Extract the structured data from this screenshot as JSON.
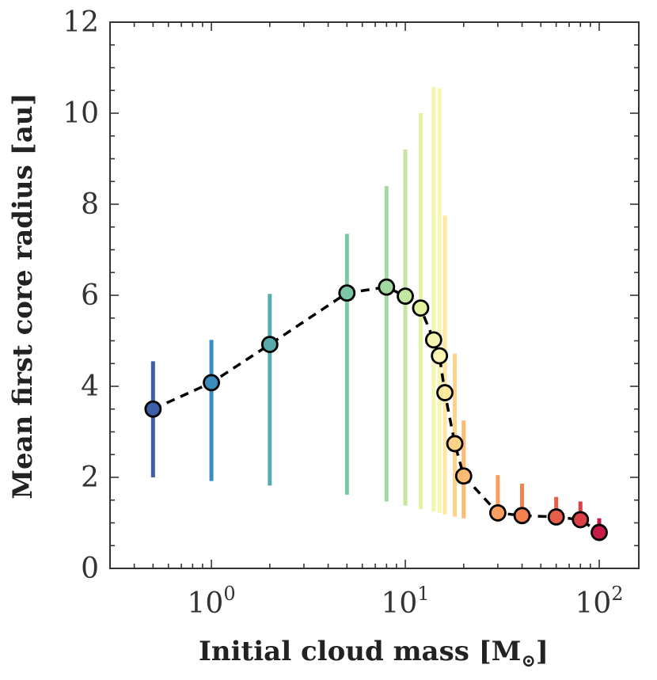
{
  "chart_data": {
    "type": "scatter",
    "title": "",
    "xlabel": "Initial cloud mass [M",
    "xlabel_sub": "⊙",
    "xlabel_close": "]",
    "ylabel": "Mean first core radius [au]",
    "xscale": "log",
    "xlim": [
      0.3,
      160
    ],
    "ylim": [
      0,
      12
    ],
    "yticks": [
      0,
      2,
      4,
      6,
      8,
      10,
      12
    ],
    "xticks": [
      {
        "value": 1,
        "base": "10",
        "exp": "0"
      },
      {
        "value": 10,
        "base": "10",
        "exp": "1"
      },
      {
        "value": 100,
        "base": "10",
        "exp": "2"
      }
    ],
    "series": [
      {
        "name": "mean first core radius",
        "line_style": "dashed",
        "points": [
          {
            "x": 0.5,
            "y": 3.5,
            "err_low": 2.0,
            "err_high": 4.55,
            "color": "#3e5ea8"
          },
          {
            "x": 1,
            "y": 4.08,
            "err_low": 1.92,
            "err_high": 5.02,
            "color": "#3a8bbe"
          },
          {
            "x": 2,
            "y": 4.92,
            "err_low": 1.82,
            "err_high": 6.03,
            "color": "#58abad"
          },
          {
            "x": 5,
            "y": 6.05,
            "err_low": 1.62,
            "err_high": 7.35,
            "color": "#7cc6a6"
          },
          {
            "x": 8,
            "y": 6.18,
            "err_low": 1.47,
            "err_high": 8.4,
            "color": "#a3d8a1"
          },
          {
            "x": 10,
            "y": 5.98,
            "err_low": 1.38,
            "err_high": 9.2,
            "color": "#c3e6a0"
          },
          {
            "x": 12,
            "y": 5.72,
            "err_low": 1.3,
            "err_high": 10.0,
            "color": "#e3f2a1"
          },
          {
            "x": 14,
            "y": 5.02,
            "err_low": 1.25,
            "err_high": 10.58,
            "color": "#f5f6ad"
          },
          {
            "x": 15,
            "y": 4.67,
            "err_low": 1.22,
            "err_high": 10.55,
            "color": "#fbf5b2"
          },
          {
            "x": 16,
            "y": 3.86,
            "err_low": 1.18,
            "err_high": 7.75,
            "color": "#fde8a0"
          },
          {
            "x": 18,
            "y": 2.74,
            "err_low": 1.14,
            "err_high": 4.72,
            "color": "#fdd289"
          },
          {
            "x": 20,
            "y": 2.03,
            "err_low": 1.1,
            "err_high": 3.25,
            "color": "#fdbb72"
          },
          {
            "x": 30,
            "y": 1.22,
            "err_low": 1.02,
            "err_high": 2.05,
            "color": "#fb9f60"
          },
          {
            "x": 40,
            "y": 1.16,
            "err_low": 1.04,
            "err_high": 1.86,
            "color": "#f4824f"
          },
          {
            "x": 60,
            "y": 1.13,
            "err_low": 1.0,
            "err_high": 1.57,
            "color": "#e85e49"
          },
          {
            "x": 80,
            "y": 1.07,
            "err_low": 0.97,
            "err_high": 1.47,
            "color": "#dc4047"
          },
          {
            "x": 100,
            "y": 0.79,
            "err_low": 0.66,
            "err_high": 1.1,
            "color": "#c51b46"
          }
        ]
      }
    ]
  }
}
